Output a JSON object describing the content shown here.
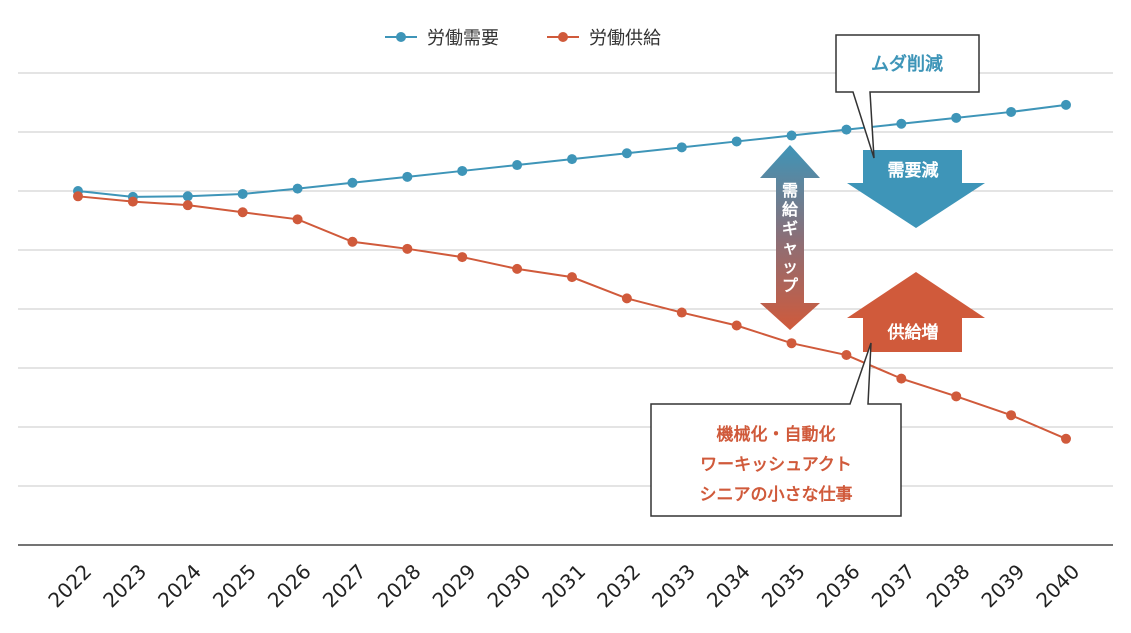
{
  "chart_data": {
    "type": "line",
    "categories": [
      "2022",
      "2023",
      "2024",
      "2025",
      "2026",
      "2027",
      "2028",
      "2029",
      "2030",
      "2031",
      "2032",
      "2033",
      "2034",
      "2035",
      "2036",
      "2037",
      "2038",
      "2039",
      "2040"
    ],
    "series": [
      {
        "name": "労働需要",
        "color": "#3e95b8",
        "values": [
          0.0,
          -0.5,
          -0.45,
          -0.25,
          0.2,
          0.7,
          1.2,
          1.7,
          2.2,
          2.7,
          3.2,
          3.7,
          4.2,
          4.7,
          5.2,
          5.7,
          6.2,
          6.7,
          7.3
        ]
      },
      {
        "name": "労働供給",
        "color": "#d05a3b",
        "values": [
          -0.45,
          -0.9,
          -1.2,
          -1.8,
          -2.4,
          -4.3,
          -4.9,
          -5.6,
          -6.6,
          -7.3,
          -9.1,
          -10.3,
          -11.4,
          -12.9,
          -13.9,
          -15.9,
          -17.4,
          -19.0,
          -21.0
        ]
      }
    ],
    "ylim": [
      -30,
      10
    ],
    "grid": true,
    "legend": "top-center",
    "annotations": {
      "muda": "ムダ削減",
      "demand_down": "需要減",
      "gap": "需給ギャップ",
      "supply_up": "供給増",
      "measures": [
        "機械化・自動化",
        "ワーキッシュアクト",
        "シニアの小さな仕事"
      ]
    }
  },
  "colors": {
    "demand": "#3e95b8",
    "supply": "#d05a3b",
    "grid": "#c8c8c8",
    "axis": "#222222"
  }
}
